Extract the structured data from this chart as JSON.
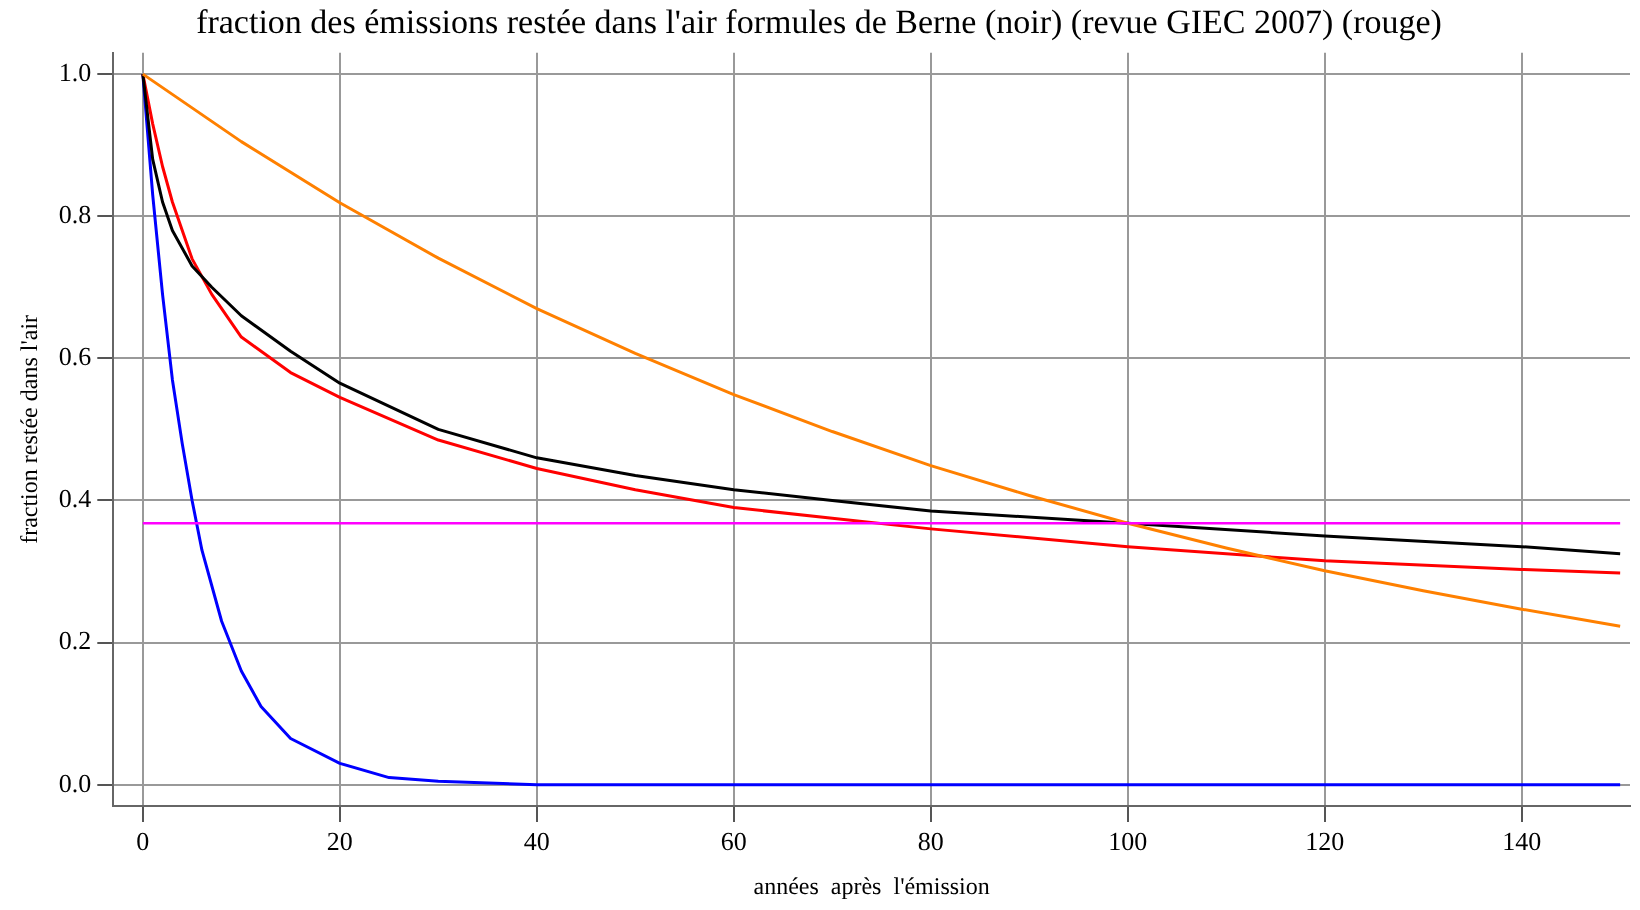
{
  "chart_data": {
    "type": "line",
    "title": "fraction des émissions restée dans l'air formules de Berne (noir) (revue GIEC 2007) (rouge)",
    "xlabel": "années  après  l'émission",
    "ylabel": "fraction restée dans l'air",
    "xlim": [
      -3,
      151
    ],
    "xticks": [
      0,
      20,
      40,
      60,
      80,
      100,
      120,
      140
    ],
    "ylim": [
      -0.03,
      1.03
    ],
    "yticks": [
      {
        "value": 0,
        "label": "0.0"
      },
      0.2,
      0.4,
      0.6,
      0.8,
      {
        "value": 1,
        "label": "1.0"
      }
    ],
    "grid": true,
    "legend": false,
    "marker": "none",
    "line_style": "solid",
    "ref_lines": [
      {
        "axis": "y",
        "value": 0.368,
        "color": "#ff00ff"
      }
    ],
    "series": [
      {
        "color": "#ff8000",
        "x": [
          0,
          10,
          20,
          30,
          40,
          50,
          60,
          70,
          80,
          90,
          100,
          110,
          120,
          130,
          140,
          150
        ],
        "values": [
          1,
          0.905,
          0.819,
          0.741,
          0.67,
          0.607,
          0.549,
          0.497,
          0.449,
          0.407,
          0.368,
          0.333,
          0.301,
          0.273,
          0.247,
          0.223
        ]
      },
      {
        "color": "#000000",
        "x": [
          0,
          1,
          2,
          3,
          5,
          7,
          10,
          15,
          20,
          30,
          40,
          50,
          60,
          70,
          80,
          100,
          120,
          140,
          150
        ],
        "values": [
          1,
          0.88,
          0.82,
          0.78,
          0.73,
          0.7,
          0.66,
          0.61,
          0.565,
          0.5,
          0.46,
          0.435,
          0.415,
          0.4,
          0.385,
          0.368,
          0.35,
          0.335,
          0.325
        ]
      },
      {
        "color": "#ff0000",
        "x": [
          0,
          1,
          2,
          3,
          5,
          7,
          10,
          15,
          20,
          30,
          40,
          50,
          60,
          70,
          80,
          100,
          120,
          140,
          150
        ],
        "values": [
          1,
          0.93,
          0.87,
          0.82,
          0.74,
          0.69,
          0.63,
          0.58,
          0.545,
          0.485,
          0.445,
          0.415,
          0.39,
          0.375,
          0.36,
          0.335,
          0.315,
          0.303,
          0.298
        ]
      },
      {
        "color": "#0000ff",
        "x": [
          0,
          1,
          2,
          3,
          4,
          5,
          6,
          8,
          10,
          12,
          15,
          20,
          25,
          30,
          40,
          150
        ],
        "values": [
          1,
          0.83,
          0.69,
          0.57,
          0.48,
          0.4,
          0.33,
          0.23,
          0.16,
          0.11,
          0.065,
          0.03,
          0.01,
          0.005,
          0,
          0
        ]
      }
    ]
  }
}
